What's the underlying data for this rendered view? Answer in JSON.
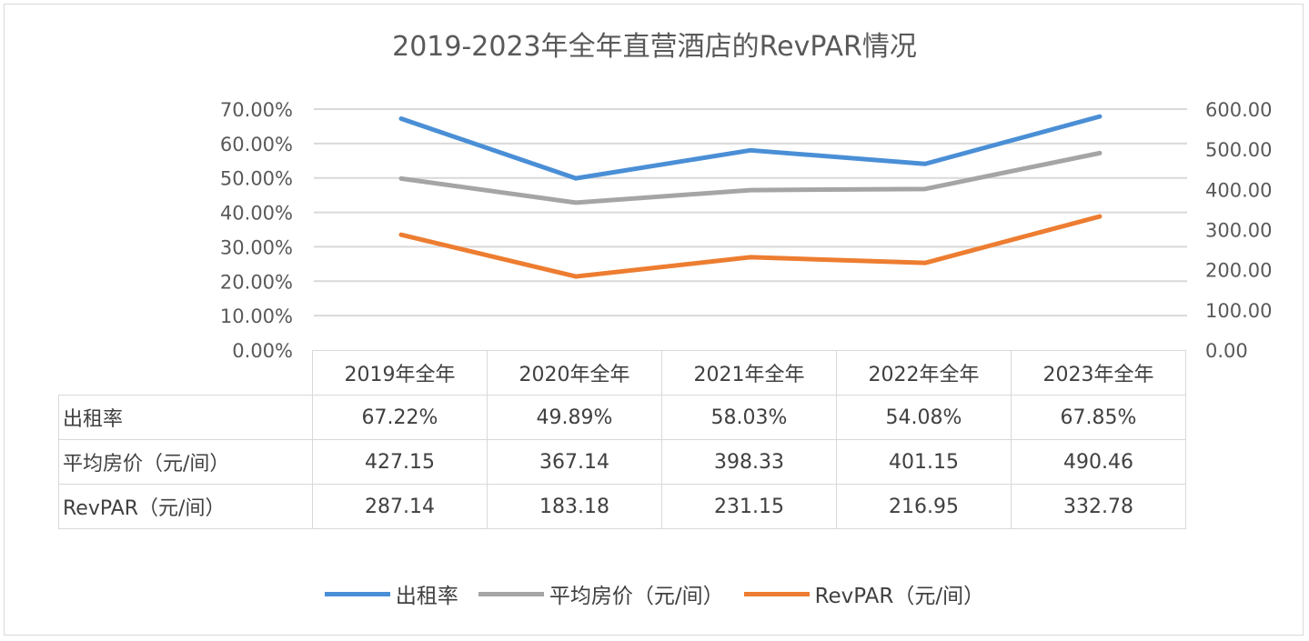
{
  "chart_data": {
    "type": "line",
    "title": "2019-2023年全年直营酒店的RevPAR情况",
    "categories": [
      "2019年全年",
      "2020年全年",
      "2021年全年",
      "2022年全年",
      "2023年全年"
    ],
    "series": [
      {
        "name": "出租率",
        "axis": "left",
        "color": "#4a8fd6",
        "values": [
          67.22,
          49.89,
          58.03,
          54.08,
          67.85
        ],
        "labels": [
          "67.22%",
          "49.89%",
          "58.03%",
          "54.08%",
          "67.85%"
        ]
      },
      {
        "name": "平均房价（元/间）",
        "axis": "right",
        "color": "#a5a5a5",
        "values": [
          427.15,
          367.14,
          398.33,
          401.15,
          490.46
        ],
        "labels": [
          "427.15",
          "367.14",
          "398.33",
          "401.15",
          "490.46"
        ]
      },
      {
        "name": "RevPAR（元/间）",
        "axis": "right",
        "color": "#ed7d31",
        "values": [
          287.14,
          183.18,
          231.15,
          216.95,
          332.78
        ],
        "labels": [
          "287.14",
          "183.18",
          "231.15",
          "216.95",
          "332.78"
        ]
      }
    ],
    "y_left": {
      "ylim": [
        0,
        70
      ],
      "ticks": [
        "0.00%",
        "10.00%",
        "20.00%",
        "30.00%",
        "40.00%",
        "50.00%",
        "60.00%",
        "70.00%"
      ]
    },
    "y_right": {
      "ylim": [
        0,
        600
      ],
      "ticks": [
        "0.00",
        "100.00",
        "200.00",
        "300.00",
        "400.00",
        "500.00",
        "600.00"
      ]
    },
    "grid": true,
    "legend": "bottom",
    "data_table": true
  }
}
